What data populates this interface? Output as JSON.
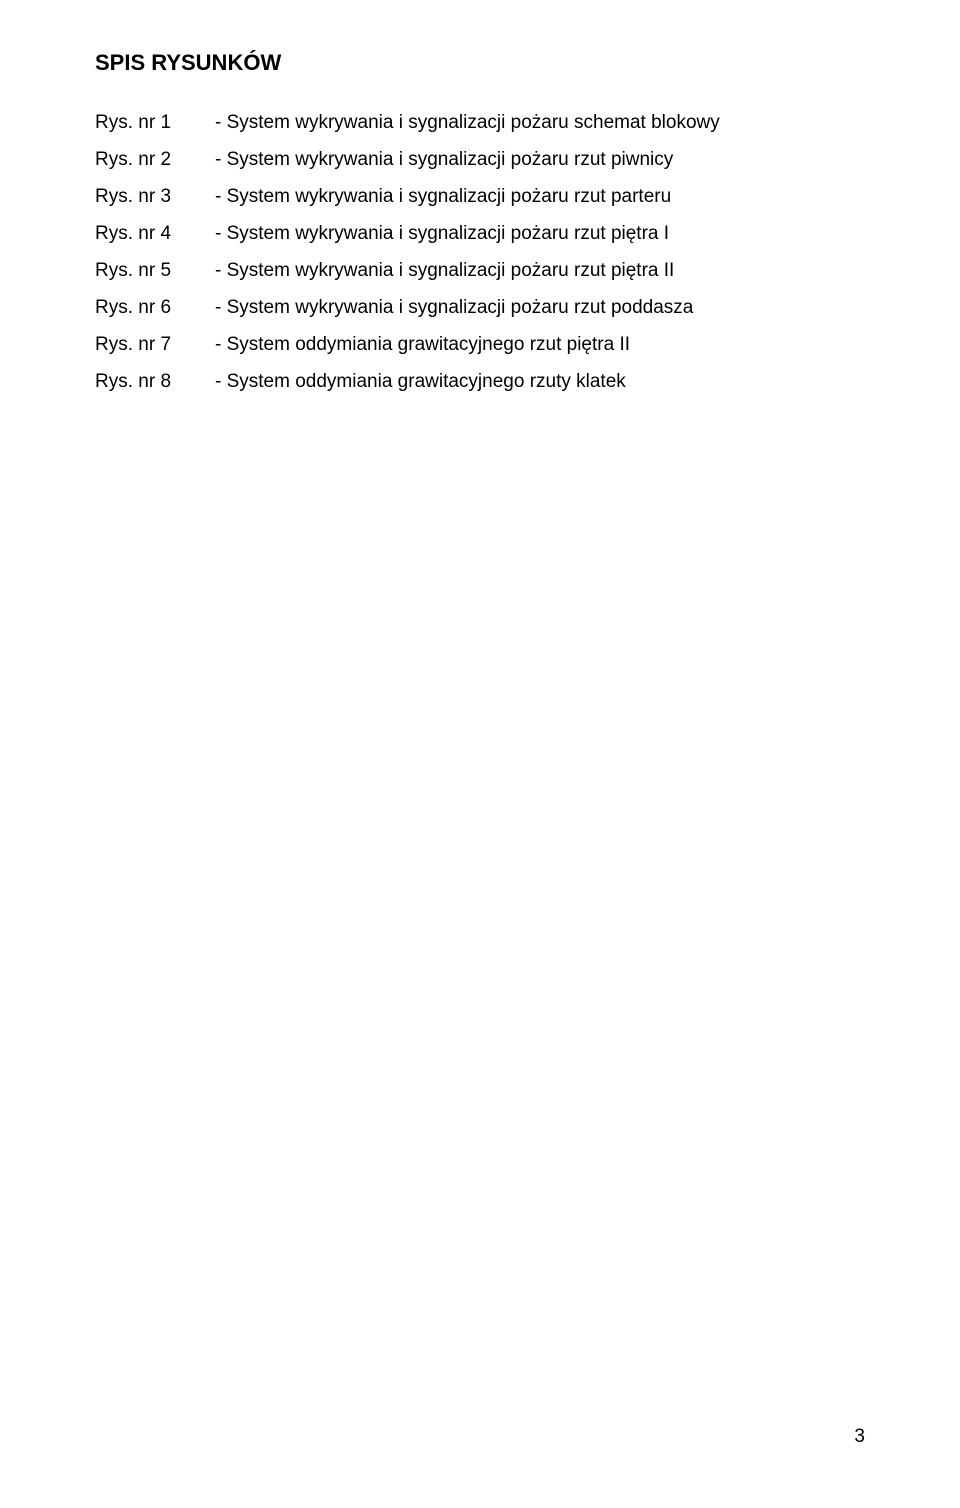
{
  "heading": "SPIS RYSUNKÓW",
  "items": [
    {
      "label": "Rys. nr 1",
      "desc": "- System wykrywania i sygnalizacji pożaru schemat blokowy"
    },
    {
      "label": "Rys. nr 2",
      "desc": "- System wykrywania i sygnalizacji pożaru rzut piwnicy"
    },
    {
      "label": "Rys. nr 3",
      "desc": "- System wykrywania i sygnalizacji pożaru rzut parteru"
    },
    {
      "label": "Rys. nr 4",
      "desc": "- System wykrywania i sygnalizacji pożaru rzut piętra I"
    },
    {
      "label": "Rys. nr 5",
      "desc": "- System wykrywania i sygnalizacji pożaru rzut piętra II"
    },
    {
      "label": "Rys. nr 6",
      "desc": "- System wykrywania i sygnalizacji pożaru rzut poddasza"
    },
    {
      "label": "Rys. nr 7",
      "desc": "- System oddymiania grawitacyjnego  rzut piętra II"
    },
    {
      "label": "Rys. nr 8",
      "desc": "- System oddymiania grawitacyjnego rzuty klatek"
    }
  ],
  "page_number": "3",
  "colors": {
    "text": "#000000",
    "background": "#ffffff"
  },
  "typography": {
    "heading_fontsize": 22,
    "heading_weight": "bold",
    "body_fontsize": 19,
    "body_weight": "normal",
    "font_family": "Arial"
  }
}
